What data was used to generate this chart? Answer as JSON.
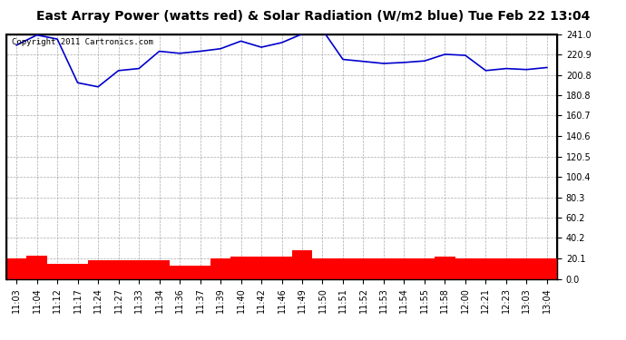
{
  "title": "East Array Power (watts red) & Solar Radiation (W/m2 blue) Tue Feb 22 13:04",
  "copyright_text": "Copyright 2011 Cartronics.com",
  "x_labels": [
    "11:03",
    "11:04",
    "11:12",
    "11:17",
    "11:24",
    "11:27",
    "11:33",
    "11:34",
    "11:36",
    "11:37",
    "11:39",
    "11:40",
    "11:42",
    "11:46",
    "11:49",
    "11:50",
    "11:51",
    "11:52",
    "11:53",
    "11:54",
    "11:55",
    "11:58",
    "12:00",
    "12:21",
    "12:23",
    "13:03",
    "13:04"
  ],
  "blue_y": [
    230.0,
    240.0,
    236.0,
    193.0,
    189.0,
    205.0,
    207.0,
    224.0,
    222.0,
    224.0,
    226.5,
    234.0,
    228.0,
    232.5,
    241.0,
    245.0,
    216.0,
    214.0,
    212.0,
    213.0,
    214.5,
    221.0,
    220.0,
    205.0,
    207.0,
    206.0,
    208.0
  ],
  "red_y": [
    20.5,
    23.0,
    15.0,
    15.0,
    18.0,
    18.0,
    18.0,
    18.0,
    13.0,
    13.0,
    20.0,
    21.5,
    21.5,
    22.0,
    28.0,
    20.0,
    20.0,
    20.0,
    20.0,
    20.0,
    20.0,
    22.0,
    20.0,
    20.0,
    20.0,
    20.0,
    20.0
  ],
  "ymin": 0.0,
  "ymax": 241.0,
  "y_ticks": [
    0.0,
    20.1,
    40.2,
    60.2,
    80.3,
    100.4,
    120.5,
    140.6,
    160.7,
    180.8,
    200.8,
    220.9,
    241.0
  ],
  "blue_color": "#0000cc",
  "red_color": "#ff0000",
  "background_color": "#ffffff",
  "grid_color": "#aaaaaa",
  "title_fontsize": 10,
  "tick_fontsize": 7,
  "copyright_fontsize": 6.5
}
